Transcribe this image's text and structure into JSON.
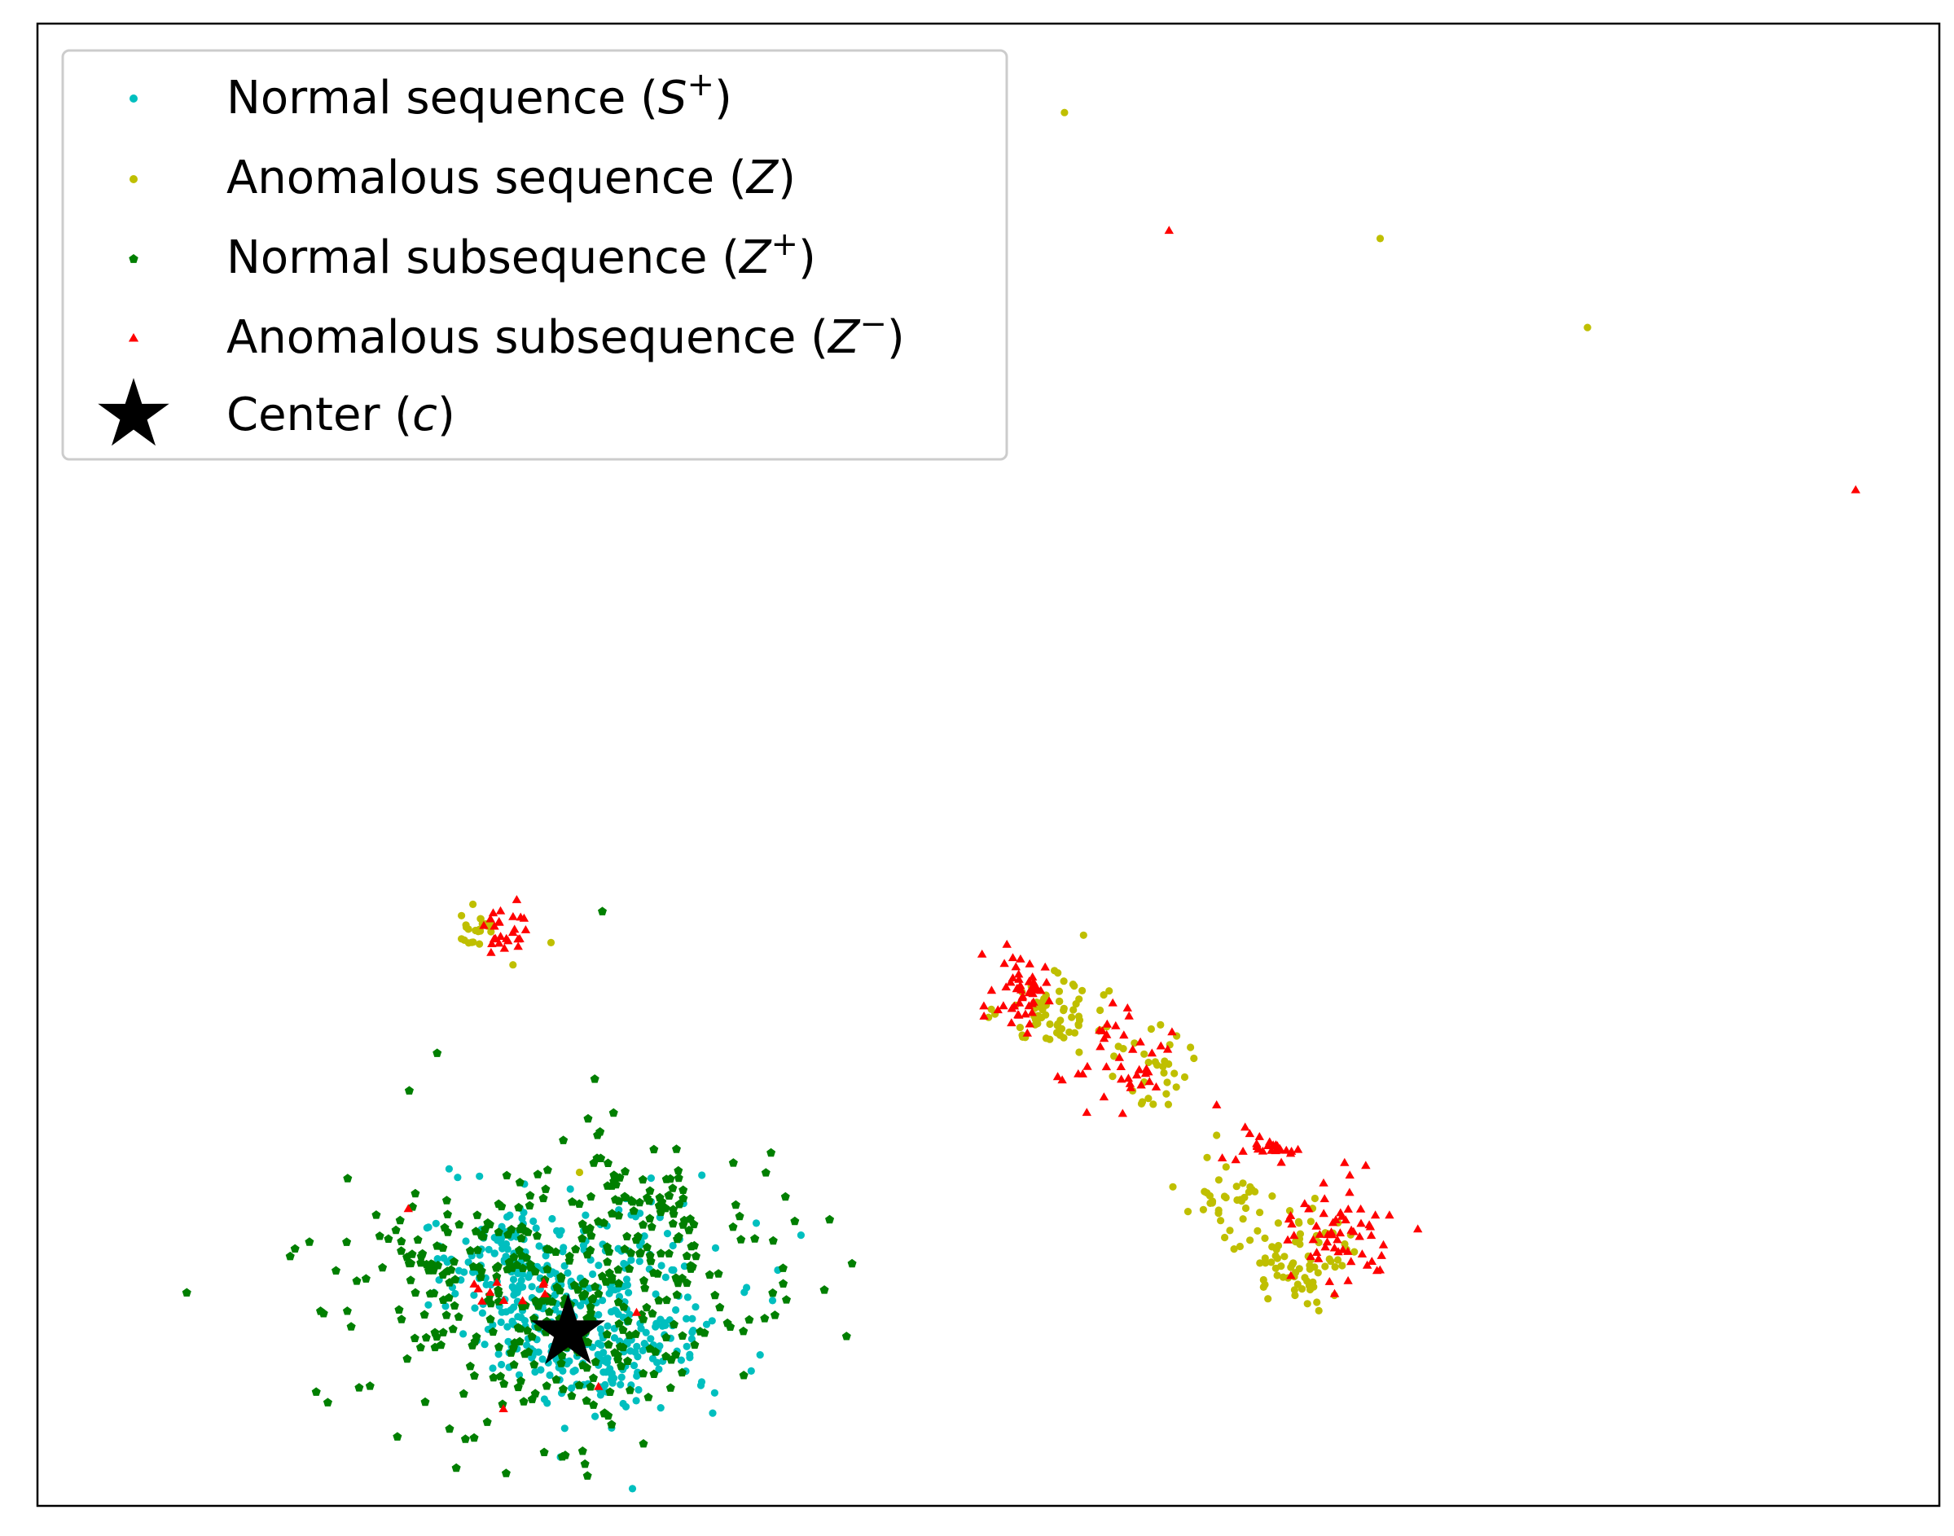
{
  "chart_data": {
    "type": "scatter",
    "title": "",
    "xlabel": "",
    "ylabel": "",
    "xlim": [
      0,
      100
    ],
    "ylim": [
      0,
      100
    ],
    "grid": false,
    "ticks": false,
    "legend_placement": "top-left",
    "series": [
      {
        "name": "Normal sequence",
        "symbol": "S",
        "superscript": "+",
        "color": "#00bfbf",
        "marker": "circle",
        "clusters": [
          {
            "cx": 25.5,
            "cy": 15.5,
            "sx": 2.2,
            "sy": 2.2,
            "n": 170
          },
          {
            "cx": 29.0,
            "cy": 11.0,
            "sx": 2.6,
            "sy": 2.0,
            "n": 190
          },
          {
            "cx": 31.0,
            "cy": 14.5,
            "sx": 3.6,
            "sy": 3.6,
            "n": 100
          }
        ]
      },
      {
        "name": "Anomalous sequence",
        "symbol": "Z",
        "superscript": "",
        "color": "#bfbf00",
        "marker": "circle",
        "clusters": [
          {
            "cx": 23.0,
            "cy": 39.0,
            "sx": 0.55,
            "sy": 0.7,
            "n": 22
          },
          {
            "cx": 53.5,
            "cy": 33.5,
            "sx": 1.3,
            "sy": 1.2,
            "n": 70
          },
          {
            "cx": 58.5,
            "cy": 29.5,
            "sx": 1.1,
            "sy": 1.2,
            "n": 30
          },
          {
            "cx": 63.0,
            "cy": 20.5,
            "sx": 1.0,
            "sy": 1.3,
            "n": 35
          },
          {
            "cx": 66.5,
            "cy": 16.5,
            "sx": 1.5,
            "sy": 1.6,
            "n": 75
          }
        ],
        "points": [
          {
            "x": 54.0,
            "y": 94.0
          },
          {
            "x": 70.6,
            "y": 85.5
          },
          {
            "x": 81.5,
            "y": 79.5
          },
          {
            "x": 27.0,
            "y": 38.0
          },
          {
            "x": 25.0,
            "y": 36.5
          },
          {
            "x": 28.5,
            "y": 22.5
          },
          {
            "x": 55.0,
            "y": 38.5
          },
          {
            "x": 62.0,
            "y": 25.0
          },
          {
            "x": 61.5,
            "y": 23.5
          }
        ]
      },
      {
        "name": "Normal subsequence",
        "symbol": "Z",
        "superscript": "+",
        "color": "#007f00",
        "marker": "pentagon",
        "clusters": [
          {
            "cx": 28.0,
            "cy": 14.5,
            "sx": 5.5,
            "sy": 4.8,
            "n": 390
          },
          {
            "cx": 32.0,
            "cy": 21.0,
            "sx": 1.2,
            "sy": 0.9,
            "n": 25
          },
          {
            "cx": 20.5,
            "cy": 17.0,
            "sx": 1.1,
            "sy": 1.0,
            "n": 20
          }
        ],
        "points": [
          {
            "x": 14.3,
            "y": 17.8
          },
          {
            "x": 29.7,
            "y": 40.1
          },
          {
            "x": 22.5,
            "y": 4.5
          }
        ]
      },
      {
        "name": "Anomalous subsequence",
        "symbol": "Z",
        "superscript": "−",
        "color": "#ff0000",
        "marker": "triangle",
        "clusters": [
          {
            "cx": 24.5,
            "cy": 39.0,
            "sx": 0.6,
            "sy": 1.1,
            "n": 26
          },
          {
            "cx": 51.5,
            "cy": 35.0,
            "sx": 1.0,
            "sy": 1.7,
            "n": 50
          },
          {
            "cx": 56.5,
            "cy": 29.0,
            "sx": 1.3,
            "sy": 1.8,
            "n": 40
          },
          {
            "cx": 65.0,
            "cy": 24.0,
            "sx": 0.9,
            "sy": 0.5,
            "n": 26
          },
          {
            "cx": 68.5,
            "cy": 18.5,
            "sx": 1.3,
            "sy": 2.0,
            "n": 60
          },
          {
            "cx": 25.5,
            "cy": 14.5,
            "sx": 1.5,
            "sy": 1.0,
            "n": 10
          }
        ],
        "points": [
          {
            "x": 59.5,
            "y": 86.0
          },
          {
            "x": 95.6,
            "y": 68.5
          },
          {
            "x": 19.5,
            "y": 20.0
          },
          {
            "x": 24.5,
            "y": 6.5
          },
          {
            "x": 29.5,
            "y": 8.0
          },
          {
            "x": 31.5,
            "y": 13.0
          },
          {
            "x": 62.0,
            "y": 27.0
          },
          {
            "x": 63.5,
            "y": 25.5
          }
        ]
      }
    ],
    "center": {
      "name": "Center",
      "symbol": "c",
      "x": 27.9,
      "y": 11.7,
      "color": "#000000",
      "marker": "star"
    }
  }
}
